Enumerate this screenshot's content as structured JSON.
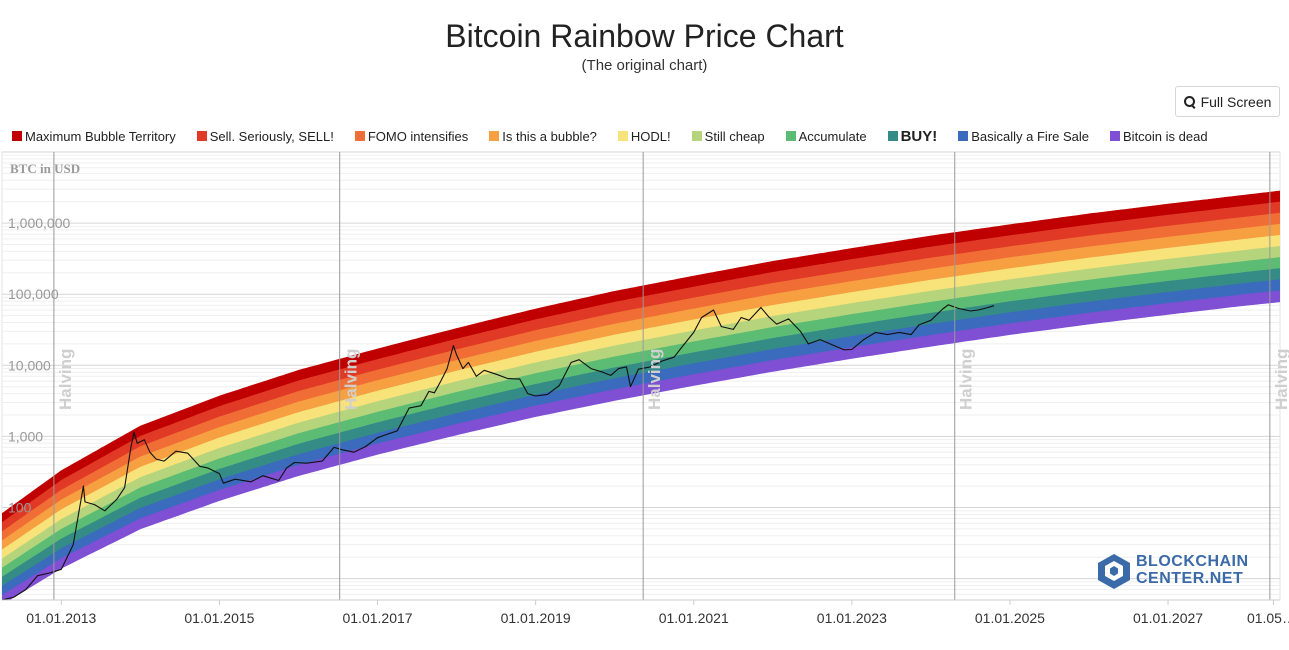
{
  "header": {
    "title": "Bitcoin Rainbow Price Chart",
    "subtitle": "(The original chart)",
    "fullscreen_label": "Full Screen",
    "fullscreen_icon": "magnifier-plus-icon"
  },
  "watermark": {
    "line1": "BLOCKCHAIN",
    "line2": "CENTER.NET"
  },
  "chart_data": {
    "type": "line",
    "title": "Bitcoin Rainbow Price Chart",
    "subtitle": "(The original chart)",
    "ylabel": "BTC in USD",
    "yscale": "log",
    "ylim": [
      5,
      10000000
    ],
    "y_ticks": [
      {
        "value": 100,
        "label": "100"
      },
      {
        "value": 1000,
        "label": "1,000"
      },
      {
        "value": 10000,
        "label": "10,000"
      },
      {
        "value": 100000,
        "label": "100,000"
      },
      {
        "value": 1000000,
        "label": "1,000,000"
      }
    ],
    "xlim": [
      "2012-04-01",
      "2028-06-01"
    ],
    "x_ticks": [
      {
        "date": "2013-01-01",
        "label": "01.01.2013"
      },
      {
        "date": "2015-01-01",
        "label": "01.01.2015"
      },
      {
        "date": "2017-01-01",
        "label": "01.01.2017"
      },
      {
        "date": "2019-01-01",
        "label": "01.01.2019"
      },
      {
        "date": "2021-01-01",
        "label": "01.01.2021"
      },
      {
        "date": "2023-01-01",
        "label": "01.01.2023"
      },
      {
        "date": "2025-01-01",
        "label": "01.01.2025"
      },
      {
        "date": "2027-01-01",
        "label": "01.01.2027"
      },
      {
        "date": "2028-05-01",
        "label": "01.05…."
      }
    ],
    "halvings": [
      {
        "date": "2012-11-28",
        "label": "Halving"
      },
      {
        "date": "2016-07-09",
        "label": "Halving"
      },
      {
        "date": "2020-05-11",
        "label": "Halving"
      },
      {
        "date": "2024-04-20",
        "label": "Halving"
      },
      {
        "date": "2028-04-15",
        "label": "Halving"
      }
    ],
    "bands": [
      {
        "name": "Maximum Bubble Territory",
        "color": "#c00000",
        "top": [
          [
            2012.2,
            75
          ],
          [
            2013,
            330
          ],
          [
            2014,
            1400
          ],
          [
            2015,
            3700
          ],
          [
            2016,
            8500
          ],
          [
            2017,
            17000
          ],
          [
            2018,
            33000
          ],
          [
            2019,
            62000
          ],
          [
            2020,
            110000
          ],
          [
            2021,
            180000
          ],
          [
            2022,
            290000
          ],
          [
            2023,
            440000
          ],
          [
            2024,
            660000
          ],
          [
            2025,
            950000
          ],
          [
            2026,
            1350000
          ],
          [
            2027,
            1850000
          ],
          [
            2028,
            2500000
          ],
          [
            2028.6,
            3000000
          ]
        ]
      },
      {
        "name": "Sell. Seriously, SELL!",
        "color": "#e03a26"
      },
      {
        "name": "FOMO intensifies",
        "color": "#f06e35"
      },
      {
        "name": "Is this a bubble?",
        "color": "#f6a042"
      },
      {
        "name": "HODL!",
        "color": "#f8e27a"
      },
      {
        "name": "Still cheap",
        "color": "#b5d47c"
      },
      {
        "name": "Accumulate",
        "color": "#5cbc73"
      },
      {
        "name": "BUY!",
        "color": "#358b86"
      },
      {
        "name": "Basically a Fire Sale",
        "color": "#3a6bbd"
      },
      {
        "name": "Bitcoin is dead",
        "color": "#7f4fd4",
        "bottom": [
          [
            2012.2,
            4
          ],
          [
            2013,
            14
          ],
          [
            2014,
            50
          ],
          [
            2015,
            125
          ],
          [
            2016,
            280
          ],
          [
            2017,
            560
          ],
          [
            2018,
            1050
          ],
          [
            2019,
            1900
          ],
          [
            2020,
            3200
          ],
          [
            2021,
            5200
          ],
          [
            2022,
            8200
          ],
          [
            2023,
            12500
          ],
          [
            2024,
            18500
          ],
          [
            2025,
            27000
          ],
          [
            2026,
            38000
          ],
          [
            2027,
            52000
          ],
          [
            2028,
            70000
          ],
          [
            2028.6,
            82000
          ]
        ]
      }
    ],
    "series": [
      {
        "type": "line",
        "color": "#111111",
        "points": [
          [
            2012.25,
            5
          ],
          [
            2012.4,
            5.5
          ],
          [
            2012.55,
            7
          ],
          [
            2012.7,
            11
          ],
          [
            2012.85,
            12
          ],
          [
            2013.0,
            13.5
          ],
          [
            2013.15,
            30
          ],
          [
            2013.28,
            200
          ],
          [
            2013.3,
            120
          ],
          [
            2013.42,
            110
          ],
          [
            2013.55,
            90
          ],
          [
            2013.7,
            130
          ],
          [
            2013.8,
            190
          ],
          [
            2013.88,
            700
          ],
          [
            2013.92,
            1150
          ],
          [
            2013.96,
            800
          ],
          [
            2014.05,
            900
          ],
          [
            2014.12,
            600
          ],
          [
            2014.2,
            480
          ],
          [
            2014.3,
            450
          ],
          [
            2014.45,
            620
          ],
          [
            2014.6,
            580
          ],
          [
            2014.75,
            380
          ],
          [
            2014.85,
            360
          ],
          [
            2015.0,
            300
          ],
          [
            2015.05,
            220
          ],
          [
            2015.2,
            250
          ],
          [
            2015.4,
            230
          ],
          [
            2015.55,
            280
          ],
          [
            2015.75,
            240
          ],
          [
            2015.85,
            360
          ],
          [
            2015.95,
            430
          ],
          [
            2016.1,
            420
          ],
          [
            2016.3,
            450
          ],
          [
            2016.45,
            700
          ],
          [
            2016.55,
            650
          ],
          [
            2016.7,
            600
          ],
          [
            2016.85,
            720
          ],
          [
            2017.0,
            960
          ],
          [
            2017.1,
            1050
          ],
          [
            2017.25,
            1200
          ],
          [
            2017.4,
            2500
          ],
          [
            2017.55,
            2700
          ],
          [
            2017.65,
            4300
          ],
          [
            2017.72,
            4100
          ],
          [
            2017.8,
            6000
          ],
          [
            2017.88,
            9000
          ],
          [
            2017.96,
            19000
          ],
          [
            2018.0,
            14000
          ],
          [
            2018.08,
            9000
          ],
          [
            2018.15,
            11000
          ],
          [
            2018.25,
            7000
          ],
          [
            2018.35,
            8500
          ],
          [
            2018.5,
            7500
          ],
          [
            2018.65,
            6500
          ],
          [
            2018.8,
            6400
          ],
          [
            2018.9,
            4000
          ],
          [
            2019.0,
            3700
          ],
          [
            2019.15,
            3900
          ],
          [
            2019.3,
            5200
          ],
          [
            2019.45,
            11000
          ],
          [
            2019.55,
            12000
          ],
          [
            2019.7,
            9000
          ],
          [
            2019.85,
            8000
          ],
          [
            2019.95,
            7200
          ],
          [
            2020.05,
            9000
          ],
          [
            2020.15,
            9500
          ],
          [
            2020.2,
            5000
          ],
          [
            2020.3,
            8800
          ],
          [
            2020.45,
            9500
          ],
          [
            2020.6,
            11500
          ],
          [
            2020.75,
            13000
          ],
          [
            2020.85,
            18000
          ],
          [
            2021.0,
            29000
          ],
          [
            2021.1,
            47000
          ],
          [
            2021.25,
            60000
          ],
          [
            2021.35,
            35000
          ],
          [
            2021.5,
            32000
          ],
          [
            2021.6,
            47000
          ],
          [
            2021.7,
            43000
          ],
          [
            2021.85,
            65000
          ],
          [
            2021.95,
            48000
          ],
          [
            2022.05,
            38000
          ],
          [
            2022.2,
            45000
          ],
          [
            2022.35,
            30000
          ],
          [
            2022.45,
            20000
          ],
          [
            2022.6,
            23000
          ],
          [
            2022.75,
            19500
          ],
          [
            2022.9,
            16500
          ],
          [
            2023.0,
            16700
          ],
          [
            2023.15,
            23000
          ],
          [
            2023.3,
            29000
          ],
          [
            2023.45,
            27000
          ],
          [
            2023.6,
            29000
          ],
          [
            2023.75,
            27000
          ],
          [
            2023.85,
            37000
          ],
          [
            2024.0,
            43000
          ],
          [
            2024.15,
            62000
          ],
          [
            2024.22,
            71000
          ],
          [
            2024.35,
            63000
          ],
          [
            2024.5,
            58000
          ],
          [
            2024.6,
            60000
          ],
          [
            2024.7,
            64000
          ],
          [
            2024.8,
            69000
          ]
        ]
      }
    ]
  }
}
